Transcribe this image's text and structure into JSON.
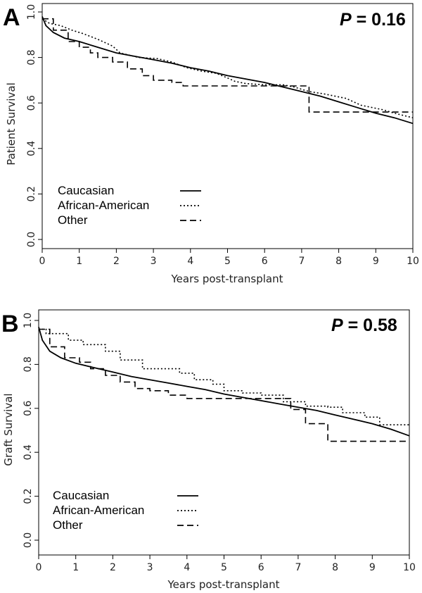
{
  "chart_data": [
    {
      "type": "line",
      "panel_label": "A",
      "p_label": "P",
      "p_text": " = 0.16",
      "xlabel": "Years post-transplant",
      "ylabel": "Patient Survival",
      "xlim": [
        0,
        10
      ],
      "ylim": [
        0,
        1
      ],
      "x_ticks": [
        "0",
        "1",
        "2",
        "3",
        "4",
        "5",
        "6",
        "7",
        "8",
        "9",
        "10"
      ],
      "y_ticks": [
        "0.0",
        "0.2",
        "0.4",
        "0.6",
        "0.8",
        "1.0"
      ],
      "grid": false,
      "legend_position": "bottom-left",
      "series": [
        {
          "name": "Caucasian",
          "style": "solid",
          "points": [
            [
              0,
              0.98
            ],
            [
              0.1,
              0.94
            ],
            [
              0.3,
              0.91
            ],
            [
              0.6,
              0.885
            ],
            [
              1,
              0.87
            ],
            [
              1.5,
              0.845
            ],
            [
              2,
              0.82
            ],
            [
              2.5,
              0.805
            ],
            [
              3,
              0.79
            ],
            [
              3.5,
              0.775
            ],
            [
              4,
              0.755
            ],
            [
              4.5,
              0.74
            ],
            [
              5,
              0.72
            ],
            [
              5.5,
              0.705
            ],
            [
              6,
              0.69
            ],
            [
              6.5,
              0.67
            ],
            [
              7,
              0.65
            ],
            [
              7.5,
              0.63
            ],
            [
              8,
              0.605
            ],
            [
              8.5,
              0.58
            ],
            [
              9,
              0.555
            ],
            [
              9.5,
              0.535
            ],
            [
              10,
              0.51
            ]
          ]
        },
        {
          "name": "African-American",
          "style": "dotted",
          "points": [
            [
              0,
              0.97
            ],
            [
              0.2,
              0.95
            ],
            [
              0.5,
              0.94
            ],
            [
              0.8,
              0.92
            ],
            [
              1.1,
              0.905
            ],
            [
              1.5,
              0.88
            ],
            [
              1.9,
              0.85
            ],
            [
              2.1,
              0.82
            ],
            [
              2.6,
              0.8
            ],
            [
              3.1,
              0.795
            ],
            [
              3.5,
              0.78
            ],
            [
              3.9,
              0.755
            ],
            [
              4.3,
              0.74
            ],
            [
              4.7,
              0.73
            ],
            [
              5.0,
              0.71
            ],
            [
              5.2,
              0.695
            ],
            [
              5.5,
              0.685
            ],
            [
              6.0,
              0.68
            ],
            [
              6.5,
              0.68
            ],
            [
              6.8,
              0.67
            ],
            [
              7.2,
              0.65
            ],
            [
              7.6,
              0.64
            ],
            [
              8.2,
              0.62
            ],
            [
              8.6,
              0.59
            ],
            [
              9.2,
              0.57
            ],
            [
              9.5,
              0.555
            ],
            [
              10,
              0.535
            ]
          ]
        },
        {
          "name": "Other",
          "style": "dashed",
          "points": [
            [
              0,
              0.97
            ],
            [
              0.3,
              0.92
            ],
            [
              0.7,
              0.87
            ],
            [
              1,
              0.845
            ],
            [
              1.3,
              0.82
            ],
            [
              1.5,
              0.8
            ],
            [
              1.9,
              0.78
            ],
            [
              2.3,
              0.75
            ],
            [
              2.7,
              0.72
            ],
            [
              3.0,
              0.7
            ],
            [
              3.5,
              0.69
            ],
            [
              3.8,
              0.675
            ],
            [
              4.5,
              0.675
            ],
            [
              5.0,
              0.675
            ],
            [
              5.5,
              0.675
            ],
            [
              6.0,
              0.675
            ],
            [
              6.8,
              0.675
            ],
            [
              7.2,
              0.56
            ],
            [
              8,
              0.56
            ],
            [
              9,
              0.56
            ],
            [
              10,
              0.56
            ]
          ],
          "step": true
        }
      ]
    },
    {
      "type": "line",
      "panel_label": "B",
      "p_label": "P",
      "p_text": " = 0.58",
      "xlabel": "Years post-transplant",
      "ylabel": "Graft Survival",
      "xlim": [
        0,
        10
      ],
      "ylim": [
        0,
        1
      ],
      "x_ticks": [
        "0",
        "1",
        "2",
        "3",
        "4",
        "5",
        "6",
        "7",
        "8",
        "9",
        "10"
      ],
      "y_ticks": [
        "0.0",
        "0.2",
        "0.4",
        "0.6",
        "0.8",
        "1.0"
      ],
      "grid": false,
      "legend_position": "bottom-left",
      "series": [
        {
          "name": "Caucasian",
          "style": "solid",
          "points": [
            [
              0,
              0.97
            ],
            [
              0.1,
              0.91
            ],
            [
              0.3,
              0.86
            ],
            [
              0.6,
              0.83
            ],
            [
              1,
              0.805
            ],
            [
              1.5,
              0.785
            ],
            [
              2,
              0.765
            ],
            [
              2.5,
              0.745
            ],
            [
              3,
              0.73
            ],
            [
              3.5,
              0.715
            ],
            [
              4,
              0.7
            ],
            [
              4.5,
              0.685
            ],
            [
              5,
              0.665
            ],
            [
              5.5,
              0.65
            ],
            [
              6,
              0.635
            ],
            [
              6.5,
              0.62
            ],
            [
              7,
              0.605
            ],
            [
              7.5,
              0.59
            ],
            [
              8,
              0.57
            ],
            [
              8.5,
              0.55
            ],
            [
              9,
              0.53
            ],
            [
              9.5,
              0.505
            ],
            [
              10,
              0.475
            ]
          ]
        },
        {
          "name": "African-American",
          "style": "dotted",
          "points": [
            [
              0,
              0.96
            ],
            [
              0.2,
              0.94
            ],
            [
              0.8,
              0.91
            ],
            [
              1.2,
              0.89
            ],
            [
              1.8,
              0.86
            ],
            [
              2.2,
              0.82
            ],
            [
              2.8,
              0.78
            ],
            [
              3.8,
              0.76
            ],
            [
              4.2,
              0.73
            ],
            [
              4.7,
              0.71
            ],
            [
              5.0,
              0.68
            ],
            [
              5.5,
              0.67
            ],
            [
              6.0,
              0.66
            ],
            [
              6.6,
              0.63
            ],
            [
              7.2,
              0.61
            ],
            [
              7.8,
              0.605
            ],
            [
              8.2,
              0.58
            ],
            [
              8.8,
              0.56
            ],
            [
              9.2,
              0.525
            ],
            [
              10,
              0.525
            ]
          ],
          "step": true
        },
        {
          "name": "Other",
          "style": "dashed",
          "points": [
            [
              0,
              0.96
            ],
            [
              0.3,
              0.88
            ],
            [
              0.7,
              0.83
            ],
            [
              1.1,
              0.81
            ],
            [
              1.4,
              0.78
            ],
            [
              1.8,
              0.75
            ],
            [
              2.2,
              0.72
            ],
            [
              2.6,
              0.69
            ],
            [
              3.0,
              0.68
            ],
            [
              3.5,
              0.66
            ],
            [
              4.0,
              0.645
            ],
            [
              5.0,
              0.645
            ],
            [
              6.0,
              0.645
            ],
            [
              6.5,
              0.645
            ],
            [
              6.8,
              0.595
            ],
            [
              7.2,
              0.53
            ],
            [
              7.8,
              0.45
            ],
            [
              8.5,
              0.45
            ],
            [
              10,
              0.45
            ]
          ],
          "step": true
        }
      ]
    }
  ]
}
